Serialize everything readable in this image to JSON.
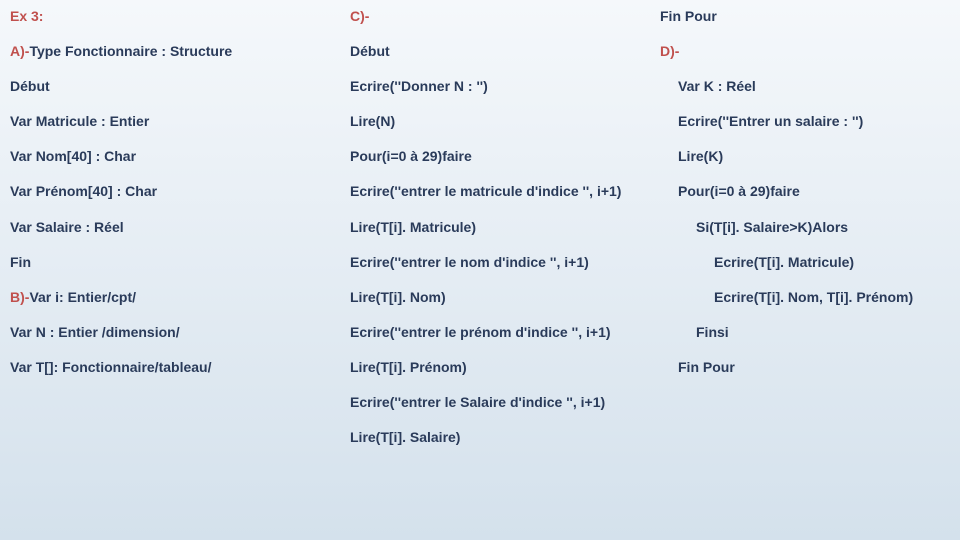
{
  "colors": {
    "text": "#2a3b5a",
    "header": "#c0504d",
    "bg_top": "#f5f8fb",
    "bg_bottom": "#d4e1ec"
  },
  "col1": {
    "r0": "Ex 3:",
    "r1a": "A)-",
    "r1b": "Type Fonctionnaire : Structure",
    "r2": "Début",
    "r3": "Var Matricule : Entier",
    "r4": "Var Nom[40] : Char",
    "r5": "Var Prénom[40] : Char",
    "r6": "Var Salaire : Réel",
    "r7": "Fin",
    "r8a": "B)-",
    "r8b": "Var i: Entier/cpt/",
    "r9": "Var N : Entier /dimension/",
    "r10": "Var T[]: Fonctionnaire/tableau/"
  },
  "col2": {
    "r0": "C)-",
    "r1": "Début",
    "r2": "Ecrire(''Donner N : '')",
    "r3": "Lire(N)",
    "r4": "Pour(i=0 à 29)faire",
    "r5": "Ecrire(''entrer le matricule d'indice '', i+1)",
    "r6": "Lire(T[i]. Matricule)",
    "r7": "Ecrire(''entrer le nom d'indice '', i+1)",
    "r8": "Lire(T[i]. Nom)",
    "r9": "Ecrire(''entrer le prénom d'indice '', i+1)",
    "r10": "Lire(T[i]. Prénom)",
    "r11": "Ecrire(''entrer le Salaire d'indice '', i+1)",
    "r12": "Lire(T[i]. Salaire)"
  },
  "col3": {
    "r0": "Fin Pour",
    "r1": "D)-",
    "r2": "Var K : Réel",
    "r3": "Ecrire(''Entrer un salaire : '')",
    "r4": "Lire(K)",
    "r5": "Pour(i=0 à 29)faire",
    "r6": "Si(T[i]. Salaire>K)Alors",
    "r7": "Ecrire(T[i]. Matricule)",
    "r8": "Ecrire(T[i]. Nom, T[i]. Prénom)",
    "r9": "Finsi",
    "r10": "Fin Pour"
  }
}
